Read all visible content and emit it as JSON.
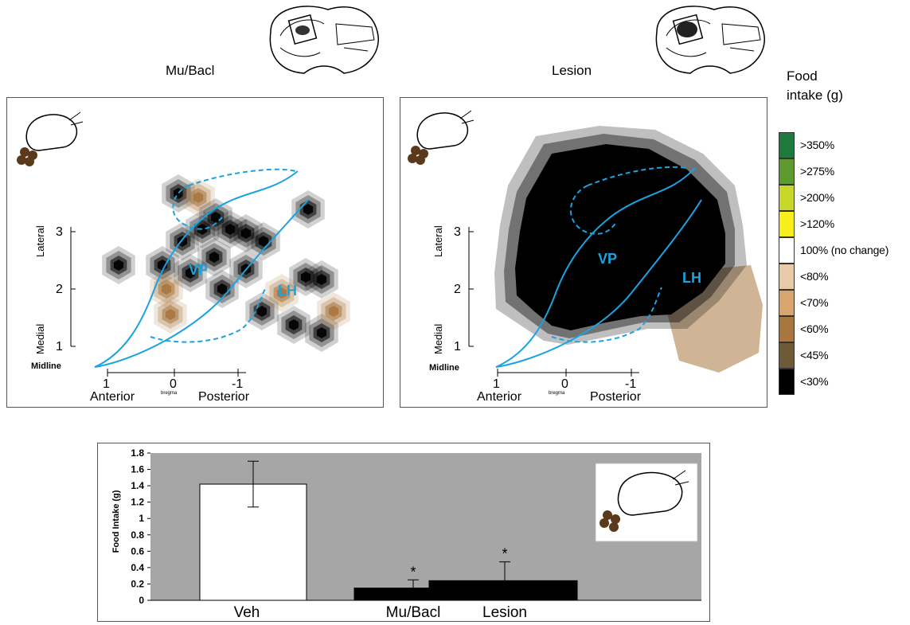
{
  "panels": [
    {
      "title": "Mu/Bacl"
    },
    {
      "title": "Lesion"
    }
  ],
  "map_axes": {
    "lateral_label": "Lateral",
    "medial_label": "Medial",
    "midline_label": "Midline",
    "anterior_label": "Anterior",
    "bregma_label": "bregma",
    "posterior_label": "Posterior",
    "y_ticks": [
      "1",
      "2",
      "3"
    ],
    "x_ticks": [
      "1",
      "0",
      "-1"
    ],
    "region_vp": "VP",
    "region_lh": "LH"
  },
  "legend": {
    "title_line1": "Food",
    "title_line2": "intake (g)",
    "items": [
      {
        "label": ">350%",
        "color": "#1e7a3c"
      },
      {
        "label": ">275%",
        "color": "#5e9a2e"
      },
      {
        "label": ">200%",
        "color": "#c8d82a"
      },
      {
        "label": ">120%",
        "color": "#f7ee1a"
      },
      {
        "label": "100% (no change)",
        "color": "#ffffff"
      },
      {
        "label": "<80%",
        "color": "#e8c9a8"
      },
      {
        "label": "<70%",
        "color": "#d9a46e"
      },
      {
        "label": "<60%",
        "color": "#a8773f"
      },
      {
        "label": "<45%",
        "color": "#6e5a36"
      },
      {
        "label": "<30%",
        "color": "#000000"
      }
    ]
  },
  "colors": {
    "structure_outline": "#1aa3e0",
    "plot_background": "#a6a6a6",
    "veh_bar": "#ffffff",
    "treatment_bar": "#000000"
  },
  "chart_data": {
    "type": "bar",
    "categories": [
      "Veh",
      "Mu/Bacl",
      "Lesion"
    ],
    "values": [
      1.42,
      0.15,
      0.24
    ],
    "errors": [
      0.28,
      0.1,
      0.23
    ],
    "significance": [
      "",
      "*",
      "*"
    ],
    "ylabel": "Food Intake (g)",
    "ylim": [
      0,
      1.8
    ],
    "yticks": [
      "0",
      "0.2",
      "0.4",
      "0.6",
      "0.8",
      "1",
      "1.2",
      "1.4",
      "1.6",
      "1.8"
    ],
    "grid": false
  }
}
